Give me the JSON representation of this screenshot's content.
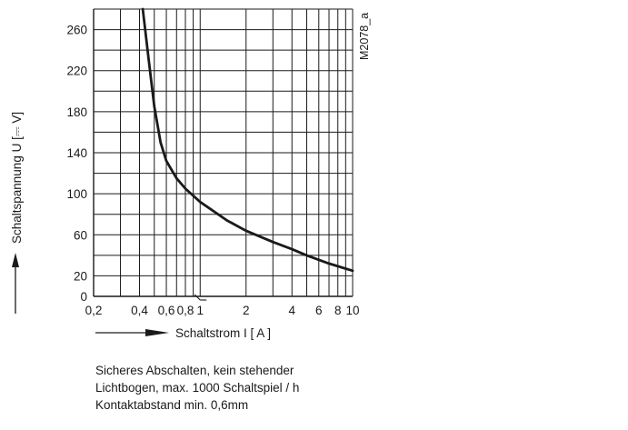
{
  "chart_data": {
    "type": "line",
    "title": "",
    "xlabel": "Schaltstrom I [ A ]",
    "ylabel": "Schaltspannung  U [⎓ V]",
    "x_scale": "log",
    "xlim": [
      0.2,
      10
    ],
    "ylim": [
      0,
      280
    ],
    "x_ticks": [
      "0,2",
      "0,4",
      "0,6",
      "0,8",
      "1",
      "2",
      "4",
      "6",
      "8",
      "10"
    ],
    "y_ticks": [
      "0",
      "20",
      "60",
      "100",
      "140",
      "180",
      "220",
      "260"
    ],
    "grid": true,
    "figure_id": "M2078_a",
    "series": [
      {
        "x": [
          0.42,
          0.46,
          0.5,
          0.55,
          0.6,
          0.7,
          0.8,
          1.0,
          1.5,
          2.0,
          3.0,
          4.0,
          5.0,
          7.0,
          10.0
        ],
        "y": [
          280,
          230,
          185,
          150,
          132,
          115,
          105,
          92,
          74,
          64,
          53,
          46,
          40,
          32,
          25
        ]
      }
    ]
  },
  "caption": [
    "Sicheres Abschalten, kein stehender",
    "Lichtbogen, max. 1000 Schaltspiel / h",
    "Kontaktabstand min. 0,6mm"
  ]
}
